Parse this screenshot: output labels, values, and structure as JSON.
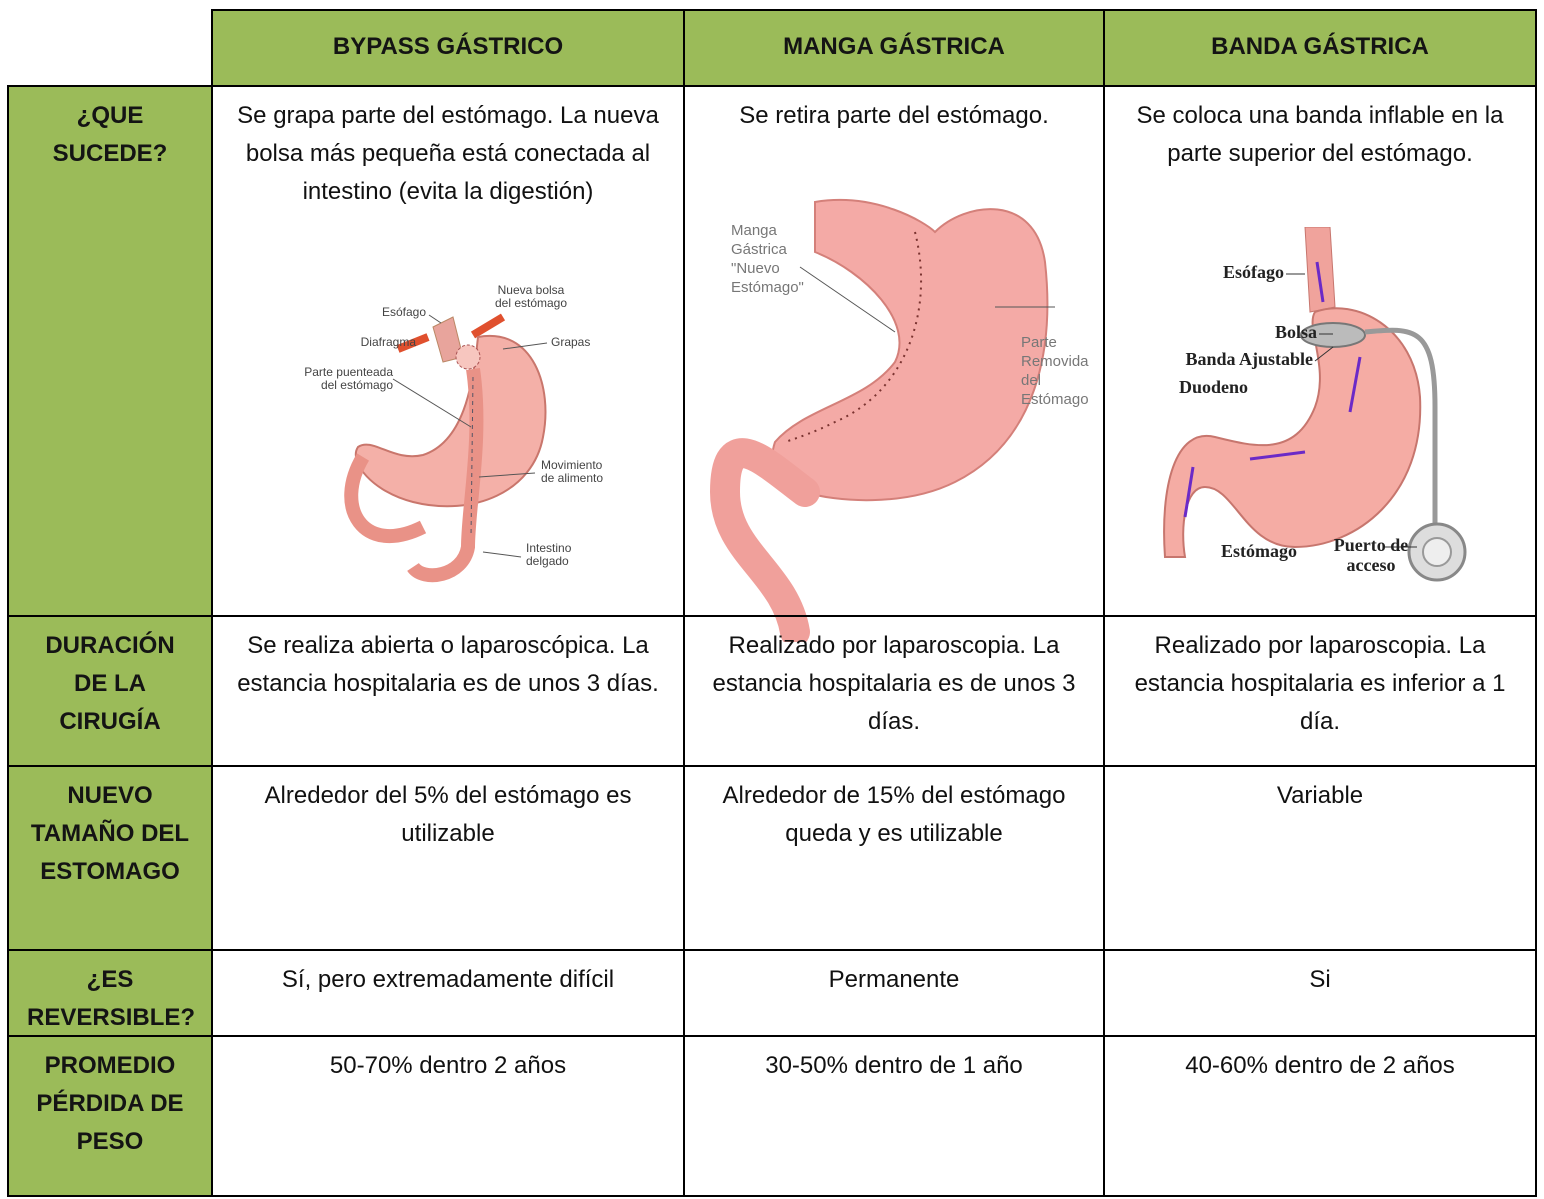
{
  "table": {
    "columns": [
      "BYPASS GÁSTRICO",
      "MANGA GÁSTRICA",
      "BANDA GÁSTRICA"
    ],
    "rows": [
      {
        "label": "¿QUE SUCEDE?",
        "cells": [
          "Se grapa parte del estómago. La nueva bolsa más pequeña está conectada al intestino (evita la digestión)",
          "Se retira parte del estómago.",
          "Se coloca una banda inflable en la parte superior del estómago."
        ]
      },
      {
        "label": "DURACIÓN DE LA CIRUGÍA",
        "cells": [
          "Se realiza abierta o laparoscópica. La estancia hospitalaria es de unos 3 días.",
          "Realizado por laparoscopia. La estancia hospitalaria es de unos 3 días.",
          "Realizado por laparoscopia. La estancia hospitalaria es inferior a 1 día."
        ]
      },
      {
        "label": "NUEVO TAMAÑO DEL ESTOMAGO",
        "cells": [
          "Alrededor del 5% del estómago es utilizable",
          "Alrededor de 15% del estómago queda y es utilizable",
          "Variable"
        ]
      },
      {
        "label": "¿ES REVERSIBLE?",
        "cells": [
          "Sí, pero extremadamente difícil",
          "Permanente",
          "Si"
        ]
      },
      {
        "label": "PROMEDIO PÉRDIDA DE PESO",
        "cells": [
          "50-70% dentro 2 años",
          "30-50% dentro de 1 año",
          "40-60% dentro de 2 años"
        ]
      }
    ]
  },
  "figures": [
    {
      "labels": [
        [
          "Esófago"
        ],
        [
          "Nueva bolsa",
          "del estómago"
        ],
        [
          "Diafragma"
        ],
        [
          "Grapas"
        ],
        [
          "Parte puenteada",
          "del estómago"
        ],
        [
          "Movimiento",
          "de alimento"
        ],
        [
          "Intestino",
          "delgado"
        ]
      ]
    },
    {
      "labels": [
        [
          "Manga",
          "Gástrica",
          "\"Nuevo",
          "Estómago\""
        ],
        [
          "Parte",
          "Removida",
          "del",
          "Estómago"
        ]
      ]
    },
    {
      "labels": [
        [
          "Esófago"
        ],
        [
          "Bolsa"
        ],
        [
          "Banda Ajustable"
        ],
        [
          "Duodeno"
        ],
        [
          "Estómago"
        ],
        [
          "Puerto de",
          "acceso"
        ]
      ]
    }
  ]
}
